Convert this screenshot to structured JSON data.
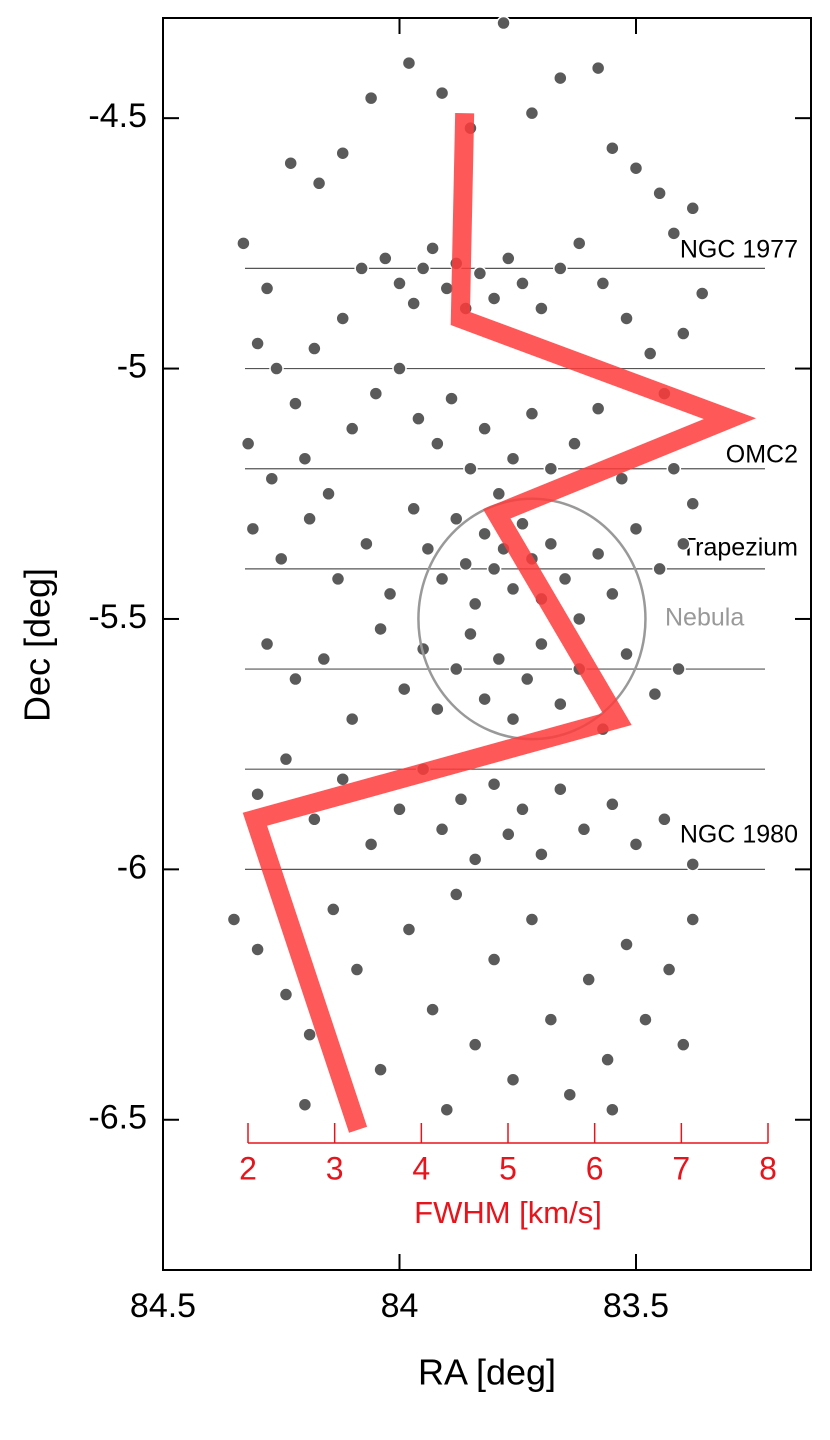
{
  "chart_data": {
    "type": "scatter",
    "xlabel": "RA [deg]",
    "ylabel": "Dec [deg]",
    "xlim": [
      84.5,
      83.13
    ],
    "ylim": [
      -6.8,
      -4.3
    ],
    "xticks": [
      84.5,
      84,
      83.5
    ],
    "yticks": [
      -4.5,
      -5,
      -5.5,
      -6,
      -6.5
    ],
    "color": "#5a5a5a",
    "x": [
      84.33,
      84.28,
      84.23,
      84.17,
      84.12,
      84.06,
      83.98,
      83.91,
      83.85,
      83.78,
      83.72,
      83.66,
      83.58,
      83.55,
      83.5,
      83.45,
      83.42,
      83.38,
      83.4,
      83.36,
      84.3,
      84.26,
      84.22,
      84.18,
      84.12,
      84.08,
      84.03,
      84.0,
      83.97,
      83.95,
      83.93,
      83.9,
      83.88,
      83.86,
      83.83,
      83.8,
      83.77,
      83.74,
      83.7,
      83.66,
      83.62,
      83.57,
      83.52,
      83.47,
      83.44,
      84.32,
      84.27,
      84.2,
      84.15,
      84.1,
      84.05,
      84.0,
      83.96,
      83.92,
      83.89,
      83.85,
      83.82,
      83.79,
      83.76,
      83.72,
      83.68,
      83.63,
      83.58,
      83.53,
      83.42,
      83.38,
      84.31,
      84.25,
      84.19,
      84.13,
      84.07,
      84.02,
      83.97,
      83.94,
      83.91,
      83.88,
      83.86,
      83.84,
      83.82,
      83.8,
      83.78,
      83.76,
      83.74,
      83.72,
      83.7,
      83.68,
      83.65,
      83.62,
      83.58,
      83.55,
      83.5,
      83.45,
      83.4,
      84.28,
      84.22,
      84.16,
      84.1,
      84.04,
      83.99,
      83.95,
      83.92,
      83.88,
      83.85,
      83.82,
      83.79,
      83.76,
      83.73,
      83.7,
      83.66,
      83.62,
      83.57,
      83.52,
      83.46,
      83.41,
      84.3,
      84.24,
      84.18,
      84.12,
      84.06,
      84.0,
      83.95,
      83.91,
      83.87,
      83.84,
      83.8,
      83.77,
      83.74,
      83.7,
      83.66,
      83.61,
      83.55,
      83.5,
      83.44,
      83.38,
      84.35,
      84.3,
      84.24,
      84.19,
      84.14,
      84.09,
      84.04,
      83.98,
      83.93,
      83.88,
      83.84,
      83.8,
      83.76,
      83.72,
      83.68,
      83.64,
      83.6,
      83.56,
      83.52,
      83.48,
      83.43,
      83.38,
      83.4,
      84.2,
      83.9,
      83.55
    ],
    "y": [
      -4.75,
      -4.84,
      -4.59,
      -4.63,
      -4.57,
      -4.46,
      -4.39,
      -4.45,
      -4.52,
      -4.31,
      -4.49,
      -4.42,
      -4.4,
      -4.56,
      -4.6,
      -4.65,
      -4.73,
      -4.68,
      -4.93,
      -4.85,
      -4.95,
      -5.0,
      -5.07,
      -4.96,
      -4.9,
      -4.8,
      -4.78,
      -4.83,
      -4.87,
      -4.8,
      -4.76,
      -4.84,
      -4.79,
      -4.88,
      -4.81,
      -4.86,
      -4.78,
      -4.83,
      -4.88,
      -4.8,
      -4.75,
      -4.83,
      -4.9,
      -4.97,
      -5.05,
      -5.15,
      -5.22,
      -5.18,
      -5.25,
      -5.12,
      -5.05,
      -5.0,
      -5.1,
      -5.15,
      -5.06,
      -5.2,
      -5.12,
      -5.25,
      -5.18,
      -5.09,
      -5.2,
      -5.15,
      -5.08,
      -5.22,
      -5.2,
      -5.27,
      -5.32,
      -5.38,
      -5.3,
      -5.42,
      -5.35,
      -5.45,
      -5.28,
      -5.36,
      -5.42,
      -5.3,
      -5.39,
      -5.47,
      -5.33,
      -5.4,
      -5.36,
      -5.44,
      -5.31,
      -5.38,
      -5.46,
      -5.35,
      -5.42,
      -5.5,
      -5.37,
      -5.45,
      -5.32,
      -5.4,
      -5.35,
      -5.55,
      -5.62,
      -5.58,
      -5.7,
      -5.52,
      -5.64,
      -5.56,
      -5.68,
      -5.6,
      -5.53,
      -5.66,
      -5.58,
      -5.7,
      -5.62,
      -5.55,
      -5.67,
      -5.6,
      -5.72,
      -5.57,
      -5.65,
      -5.6,
      -5.85,
      -5.78,
      -5.9,
      -5.82,
      -5.95,
      -5.88,
      -5.8,
      -5.92,
      -5.86,
      -5.98,
      -5.83,
      -5.93,
      -5.88,
      -5.97,
      -5.84,
      -5.92,
      -5.87,
      -5.95,
      -5.9,
      -5.99,
      -6.1,
      -6.16,
      -6.25,
      -6.33,
      -6.08,
      -6.2,
      -6.4,
      -6.12,
      -6.28,
      -6.05,
      -6.35,
      -6.18,
      -6.42,
      -6.1,
      -6.3,
      -6.45,
      -6.22,
      -6.38,
      -6.15,
      -6.3,
      -6.2,
      -6.1,
      -6.35,
      -6.47,
      -6.48,
      -6.48
    ],
    "hlines": [
      -4.8,
      -5.0,
      -5.2,
      -5.4,
      -5.6,
      -5.8,
      -6.0
    ],
    "annotations": [
      "NGC 1977",
      "OMC2",
      "Trapezium",
      "NGC 1980"
    ],
    "nebula": {
      "label": "Nebula",
      "center": [
        83.72,
        -5.5
      ],
      "radius": 0.24,
      "color": "#999999"
    },
    "x2label": "FWHM [km/s]",
    "x2lim": [
      2,
      8
    ],
    "x2ticks": [
      2,
      3,
      4,
      5,
      6,
      7,
      8
    ],
    "x2color": "#e8141c",
    "profile": {
      "axis": "x2",
      "color": "#ff3b3b",
      "x": [
        4.5,
        4.45,
        7.56,
        4.87,
        6.26,
        2.08,
        3.27
      ],
      "y": [
        -4.49,
        -4.9,
        -5.1,
        -5.29,
        -5.7,
        -5.9,
        -6.52
      ]
    }
  }
}
